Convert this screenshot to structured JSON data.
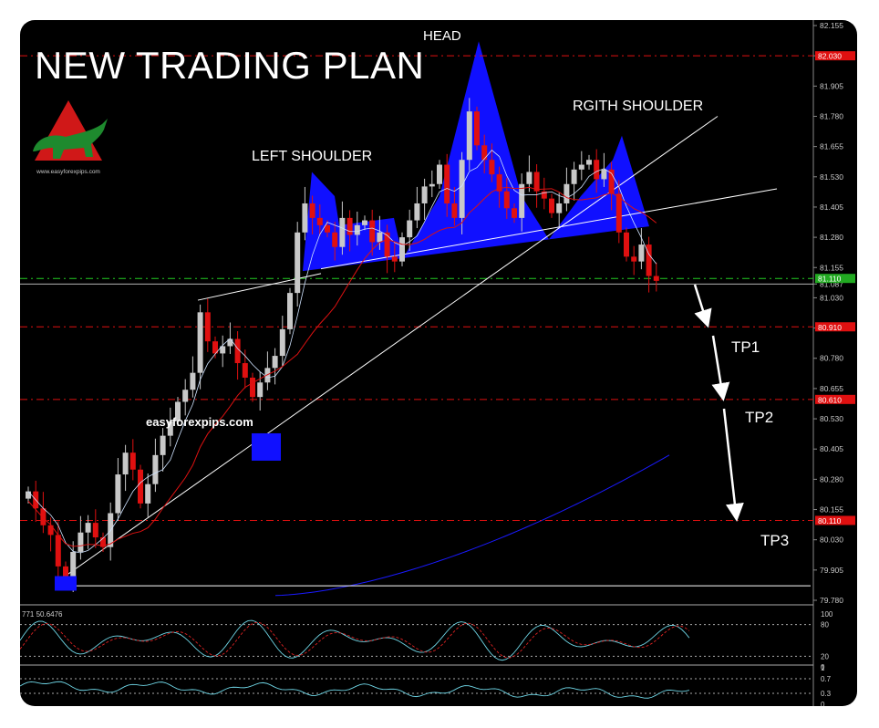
{
  "title": "NEW TRADING PLAN",
  "watermark": "easyforexpips.com",
  "logo": {
    "icon": "bull-triangle-logo-icon",
    "text": "www.easyforexpips.com"
  },
  "colors": {
    "background": "#000000",
    "bull_candle": "#c8c8c8",
    "bear_candle": "#e01010",
    "pattern_fill": "#1010ff",
    "level_line": "#e01010",
    "current_price_line": "#22cc22",
    "ma_fast": "#ffffff",
    "ma_mid": "#dd1111",
    "ma_slow": "#1a1aff",
    "arrows": "#ffffff"
  },
  "chart_data": {
    "type": "candlestick",
    "ylim": [
      79.78,
      82.155
    ],
    "y_ticks": [
      "82.155",
      "82.030",
      "81.905",
      "81.780",
      "81.655",
      "81.530",
      "81.405",
      "81.280",
      "81.155",
      "81.087",
      "81.030",
      "80.905",
      "80.780",
      "80.655",
      "80.530",
      "80.405",
      "80.280",
      "80.155",
      "80.030",
      "79.905",
      "79.780"
    ],
    "price_tags": [
      {
        "label": "82.030",
        "value": 82.03,
        "color": "#e01010"
      },
      {
        "label": "81.110",
        "value": 81.11,
        "color": "#22aa22"
      },
      {
        "label": "80.910",
        "value": 80.91,
        "color": "#e01010"
      },
      {
        "label": "80.610",
        "value": 80.61,
        "color": "#e01010"
      },
      {
        "label": "80.110",
        "value": 80.11,
        "color": "#e01010"
      }
    ],
    "current_price": 81.087,
    "support_line": 79.84,
    "annotations": [
      "HEAD",
      "LEFT SHOULDER",
      "RGITH SHOULDER",
      "TP1",
      "TP2",
      "TP3"
    ],
    "close_series": [
      80.23,
      80.16,
      80.09,
      80.05,
      79.92,
      79.87,
      79.98,
      80.06,
      80.1,
      80.04,
      80.0,
      80.14,
      80.3,
      80.39,
      80.32,
      80.18,
      80.26,
      80.38,
      80.46,
      80.52,
      80.6,
      80.65,
      80.72,
      80.97,
      80.85,
      80.8,
      80.83,
      80.86,
      80.76,
      80.7,
      80.62,
      80.68,
      80.74,
      80.79,
      80.9,
      81.05,
      81.3,
      81.42,
      81.36,
      81.33,
      81.3,
      81.24,
      81.36,
      81.29,
      81.33,
      81.35,
      81.26,
      81.3,
      81.2,
      81.18,
      81.28,
      81.35,
      81.42,
      81.49,
      81.5,
      81.58,
      81.42,
      81.36,
      81.6,
      81.8,
      81.66,
      81.6,
      81.54,
      81.47,
      81.4,
      81.36,
      81.5,
      81.55,
      81.47,
      81.44,
      81.38,
      81.42,
      81.5,
      81.56,
      81.58,
      81.6,
      81.52,
      81.56,
      81.46,
      81.3,
      81.2,
      81.18,
      81.25,
      81.12,
      81.1
    ],
    "oscillator_1": {
      "header": "771 50.6476",
      "ticks": [
        "100",
        "80",
        "20",
        "0"
      ]
    },
    "oscillator_2": {
      "ticks": [
        "1",
        "0.7",
        "0.3",
        "0"
      ]
    }
  }
}
